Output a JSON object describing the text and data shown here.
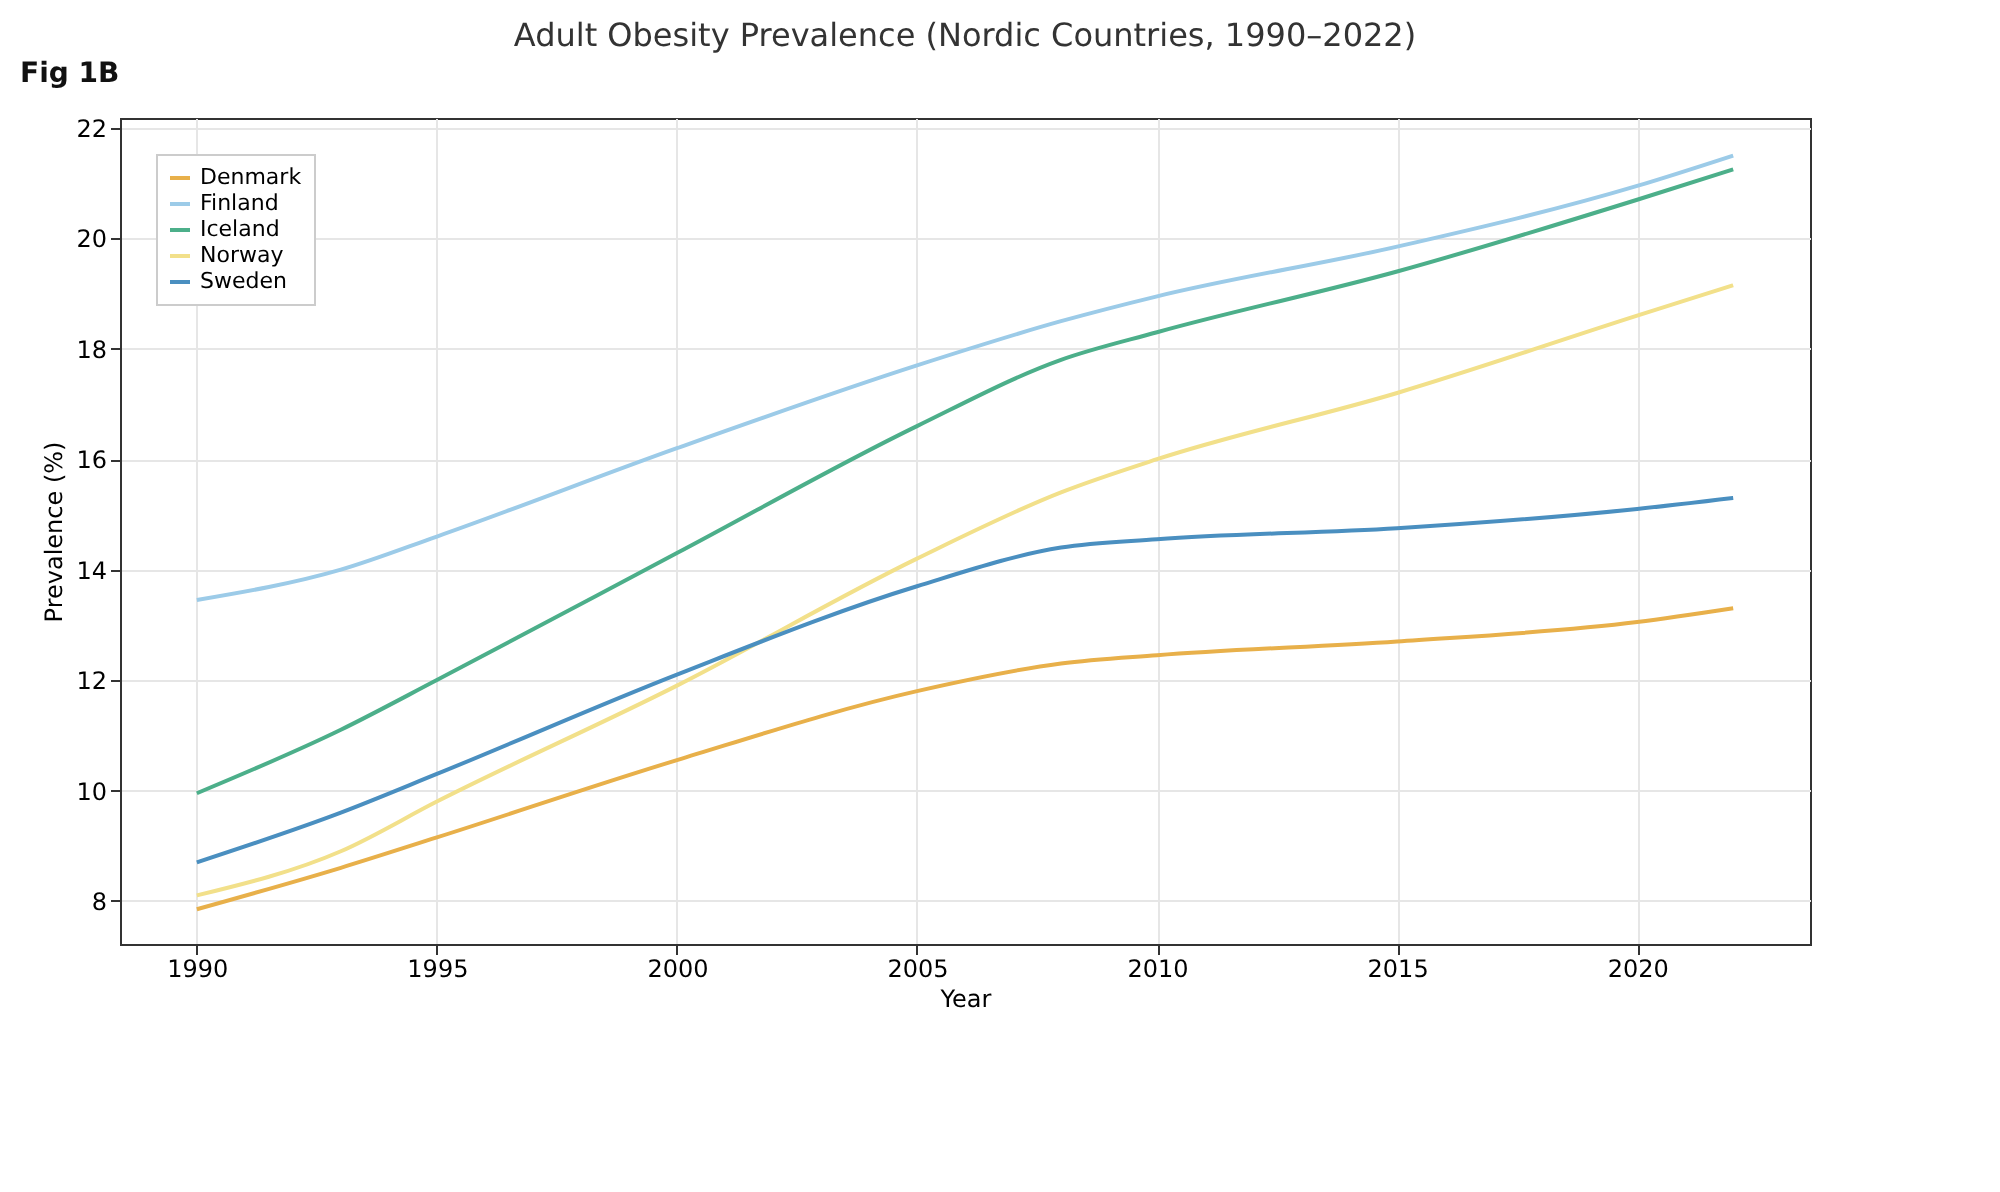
{
  "chart_data": {
    "type": "line",
    "title": "Adult Obesity Prevalence (Nordic Countries, 1990–2022)",
    "xlabel": "Year",
    "ylabel": "Prevalence (%)",
    "annotations": [
      "Fig 1B"
    ],
    "x": [
      1990,
      1993,
      1995,
      2000,
      2005,
      2008,
      2010,
      2015,
      2020,
      2022
    ],
    "series": [
      {
        "name": "Denmark",
        "color": "#e8b04a",
        "values": [
          7.85,
          8.6,
          9.15,
          10.55,
          11.8,
          12.3,
          12.45,
          12.7,
          13.05,
          13.3
        ]
      },
      {
        "name": "Finland",
        "color": "#9ccbe8",
        "values": [
          13.45,
          14.0,
          14.6,
          16.2,
          17.7,
          18.5,
          18.95,
          19.85,
          20.95,
          21.5
        ]
      },
      {
        "name": "Iceland",
        "color": "#4caf8a",
        "values": [
          9.95,
          11.1,
          12.0,
          14.3,
          16.6,
          17.8,
          18.3,
          19.4,
          20.7,
          21.25
        ]
      },
      {
        "name": "Norway",
        "color": "#f2e08a",
        "values": [
          8.1,
          8.9,
          9.8,
          11.9,
          14.2,
          15.4,
          16.0,
          17.2,
          18.6,
          19.15
        ]
      },
      {
        "name": "Sweden",
        "color": "#4a8fc0",
        "values": [
          8.7,
          9.6,
          10.3,
          12.1,
          13.7,
          14.4,
          14.55,
          14.75,
          15.1,
          15.3
        ]
      }
    ],
    "xlim": [
      1988.4,
      2023.6
    ],
    "ylim": [
      7.22,
      22.18
    ],
    "xticks": [
      1990,
      1995,
      2000,
      2005,
      2010,
      2015,
      2020
    ],
    "yticks": [
      8,
      10,
      12,
      14,
      16,
      18,
      20,
      22
    ],
    "grid": true,
    "legend": "top left",
    "marker": "none",
    "line_style": "solid"
  }
}
